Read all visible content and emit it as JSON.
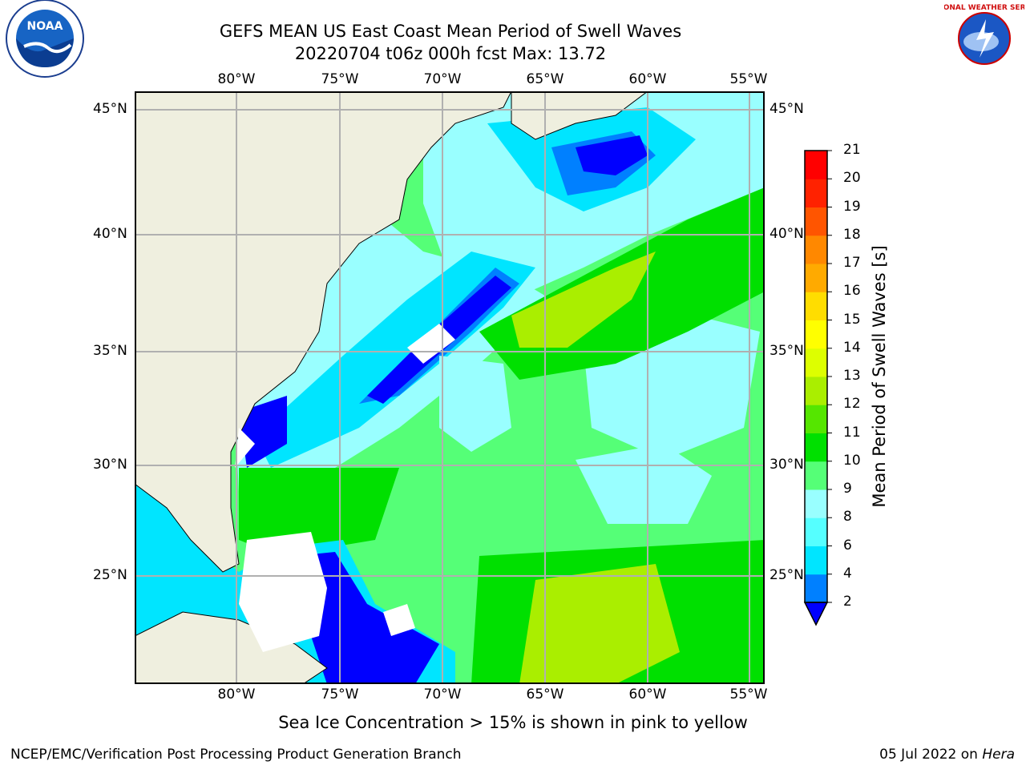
{
  "header": {
    "title_line1": "GEFS MEAN US East Coast Mean Period of Swell Waves",
    "title_line2": "20220704 t06z 000h fcst   Max: 13.72"
  },
  "logos": {
    "noara_text": "NOAA",
    "nws_text": "NATIONAL WEATHER SERVICE"
  },
  "map": {
    "lon_labels": [
      "80°W",
      "75°W",
      "70°W",
      "65°W",
      "60°W",
      "55°W"
    ],
    "lat_labels": [
      "45°N",
      "40°N",
      "35°N",
      "30°N",
      "25°N"
    ],
    "land_color": "#efefdf",
    "ocean_colors": [
      "#0000ff",
      "#0080ff",
      "#00e5ff",
      "#99ffff",
      "#55ff88",
      "#00e000",
      "#66ee00",
      "#ccff00"
    ]
  },
  "colorbar": {
    "label": "Mean Period of Swell Waves [s]",
    "ticks": [
      "2",
      "4",
      "6",
      "8",
      "9",
      "10",
      "11",
      "12",
      "13",
      "14",
      "15",
      "16",
      "17",
      "18",
      "19",
      "20",
      "21"
    ],
    "colors": [
      "#0000ff",
      "#0080ff",
      "#00e5ff",
      "#55ffff",
      "#99ffff",
      "#55ff77",
      "#00e000",
      "#55e600",
      "#aaee00",
      "#ddff00",
      "#ffff00",
      "#ffdd00",
      "#ffaa00",
      "#ff8800",
      "#ff5500",
      "#ff2200",
      "#ff0000"
    ]
  },
  "footer": {
    "caption": "Sea Ice Concentration > 15% is shown in pink to yellow",
    "left": "NCEP/EMC/Verification Post Processing Product Generation Branch",
    "right_date": "05 Jul 2022 on",
    "right_machine": "Hera"
  }
}
